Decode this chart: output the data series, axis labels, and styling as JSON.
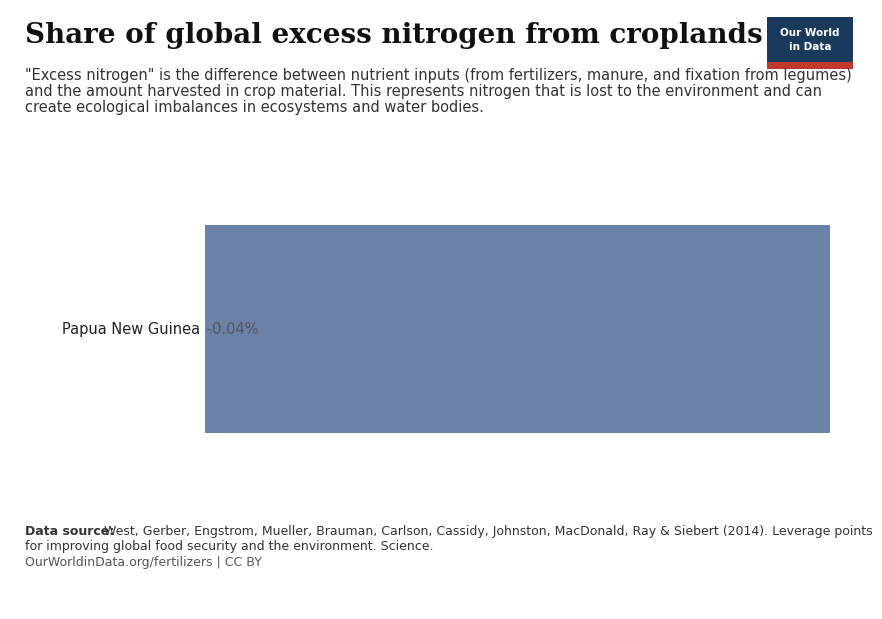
{
  "title": "Share of global excess nitrogen from croplands",
  "subtitle_line1": "\"Excess nitrogen\" is the difference between nutrient inputs (from fertilizers, manure, and fixation from legumes)",
  "subtitle_line2": "and the amount harvested in crop material. This represents nitrogen that is lost to the environment and can",
  "subtitle_line3": "create ecological imbalances in ecosystems and water bodies.",
  "country": "Papua New Guinea",
  "value_label": "-0.04%",
  "bar_color": "#6b82a8",
  "background_color": "#ffffff",
  "datasource_bold": "Data source:",
  "datasource_rest": " West, Gerber, Engstrom, Mueller, Brauman, Carlson, Cassidy, Johnston, MacDonald, Ray & Siebert (2014). Leverage points",
  "datasource_line2": "for improving global food security and the environment. Science.",
  "url_text": "OurWorldinData.org/fertilizers | CC BY",
  "owid_box_bg": "#1a3a5c",
  "owid_box_red": "#c0392b",
  "owid_text_line1": "Our World",
  "owid_text_line2": "in Data",
  "title_fontsize": 20,
  "subtitle_fontsize": 10.5,
  "label_fontsize": 10.5,
  "footer_fontsize": 9,
  "separator_color": "#cccccc",
  "right_line_color": "#cccccc"
}
